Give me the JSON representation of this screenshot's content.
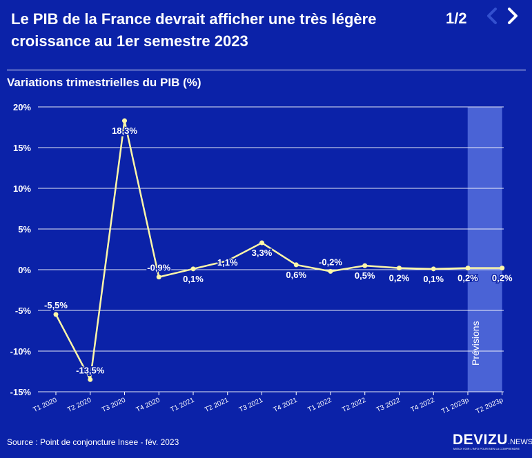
{
  "header": {
    "title": "Le PIB de la France devrait afficher une très légère croissance au 1er semestre 2023",
    "pager": "1/2",
    "prev_icon": "chevron-left-icon",
    "next_icon": "chevron-right-icon"
  },
  "chart_data": {
    "type": "line",
    "title": "Variations trimestrielles du PIB (%)",
    "categories": [
      "T1 2020",
      "T2 2020",
      "T3 2020",
      "T4 2020",
      "T1 2021",
      "T2 2021",
      "T3 2021",
      "T4 2021",
      "T1 2022",
      "T2 2022",
      "T3 2022",
      "T4 2022",
      "T1 2023p",
      "T2 2023p"
    ],
    "series": [
      {
        "values": [
          -5.5,
          -13.5,
          18.3,
          -0.9,
          0.1,
          1.1,
          3.3,
          0.6,
          -0.2,
          0.5,
          0.2,
          0.1,
          0.2,
          0.2
        ],
        "labels": [
          "-5,5%",
          "-13,5%",
          "18,3%",
          "-0,9%",
          "0,1%",
          "1,1%",
          "3,3%",
          "0,6%",
          "-0,2%",
          "0,5%",
          "0,2%",
          "0,1%",
          "0,2%",
          "0,2%"
        ]
      }
    ],
    "ylim": [
      -15,
      20
    ],
    "yticks": [
      20,
      15,
      10,
      5,
      0,
      -5,
      -10,
      -15
    ],
    "ytick_labels": [
      "20%",
      "15%",
      "10%",
      "5%",
      "0%",
      "-5%",
      "-10%",
      "-15%"
    ],
    "grid": true,
    "forecast_band": {
      "from_category": "T2 2023p",
      "label": "Prévisions"
    },
    "colors": {
      "line": "#fdf7a8",
      "background": "#0b22a8",
      "band": "#4a63d6",
      "text": "#ffffff"
    }
  },
  "footer": {
    "source": "Source : Point de conjoncture Insee - fév. 2023",
    "logo": "DEVIZU",
    "logo_suffix": ".NEWS",
    "logo_tagline": "MIEUX VOIR L'INFO POUR BIEN LA COMPRENDRE"
  }
}
